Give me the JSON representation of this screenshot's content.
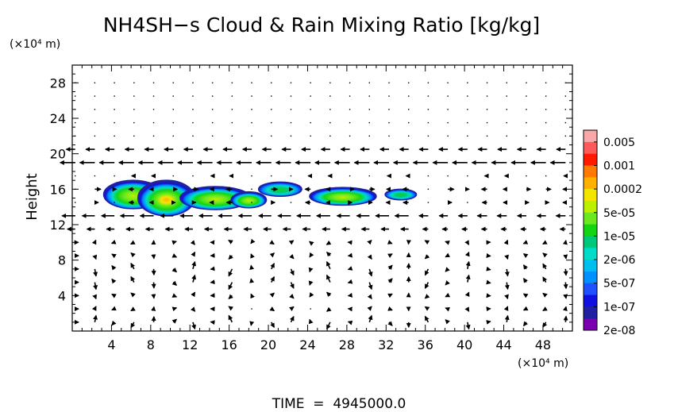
{
  "chart_data": {
    "type": "contour",
    "title": "NH4SH−s Cloud & Rain Mixing Ratio [kg/kg]",
    "ylabel": "Height",
    "y_units": "(×10⁴ m)",
    "x_units": "(×10⁴ m)",
    "xlim": [
      0,
      51
    ],
    "ylim": [
      0,
      30
    ],
    "x_ticks": [
      4,
      8,
      12,
      16,
      20,
      24,
      28,
      32,
      36,
      40,
      44,
      48
    ],
    "y_ticks": [
      4,
      8,
      12,
      16,
      20,
      24,
      28
    ],
    "footer": "TIME  =  4945000.0",
    "colorbar": {
      "labels": [
        "0.005",
        "0.001",
        "0.0002",
        "5e-05",
        "1e-05",
        "2e-06",
        "5e-07",
        "1e-07",
        "2e-08"
      ],
      "colors": [
        "#f8a8a8",
        "#ff5a5a",
        "#ff1a00",
        "#ff7a00",
        "#ffb000",
        "#f2e600",
        "#bdf000",
        "#6ee81e",
        "#14d414",
        "#00c87a",
        "#00dcc8",
        "#00bff0",
        "#0090ff",
        "#2050ff",
        "#1010e0",
        "#2020a0",
        "#7a00b0"
      ]
    },
    "cloud_cells": [
      {
        "x": 6.2,
        "y": 15.4,
        "rx": 3.0,
        "ry": 1.6,
        "peak": "5e-05"
      },
      {
        "x": 9.6,
        "y": 15.0,
        "rx": 2.9,
        "ry": 2.0,
        "peak": "0.0002"
      },
      {
        "x": 14.6,
        "y": 15.0,
        "rx": 3.6,
        "ry": 1.3,
        "peak": "1e-05"
      },
      {
        "x": 18.0,
        "y": 14.8,
        "rx": 1.8,
        "ry": 0.9,
        "peak": "1e-05"
      },
      {
        "x": 21.2,
        "y": 16.0,
        "rx": 2.2,
        "ry": 0.8,
        "peak": "2e-06"
      },
      {
        "x": 27.6,
        "y": 15.2,
        "rx": 3.4,
        "ry": 1.0,
        "peak": "1e-05"
      },
      {
        "x": 33.5,
        "y": 15.4,
        "rx": 1.6,
        "ry": 0.6,
        "peak": "2e-06"
      }
    ],
    "wind_field": "zonal jets near heights 12 and 19 (westward), weak vertical motion below 10"
  }
}
